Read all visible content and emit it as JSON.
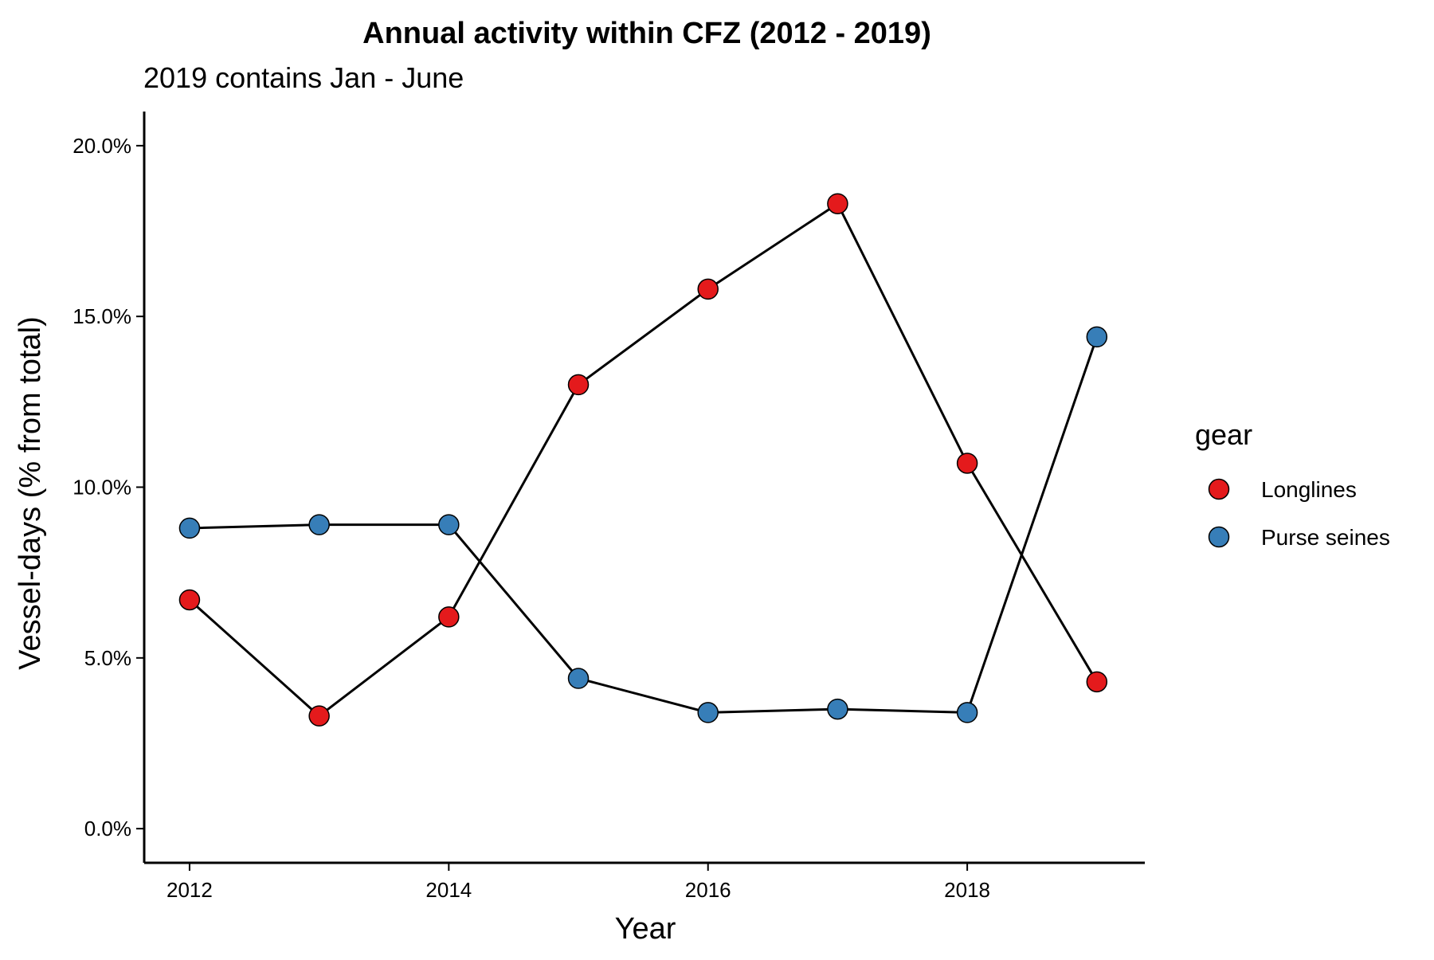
{
  "chart_data": {
    "type": "line",
    "title": "Annual activity within CFZ (2012 - 2019)",
    "subtitle": "2019 contains Jan - June",
    "xlabel": "Year",
    "ylabel": "Vessel-days (% from total)",
    "xlim": [
      2011.65,
      2019.37
    ],
    "ylim": [
      -1.0,
      21.0
    ],
    "x_ticks": [
      2012,
      2014,
      2016,
      2018
    ],
    "y_ticks": [
      0,
      5,
      10,
      15,
      20
    ],
    "y_tick_labels": [
      "0.0%",
      "5.0%",
      "10.0%",
      "15.0%",
      "20.0%"
    ],
    "x_tick_labels": [
      "2012",
      "2014",
      "2016",
      "2018"
    ],
    "grid": false,
    "legend": {
      "title": "gear",
      "position": "right"
    },
    "x": [
      2012,
      2013,
      2014,
      2015,
      2016,
      2017,
      2018,
      2019
    ],
    "series": [
      {
        "name": "Longlines",
        "color": "#e41a1c",
        "values": [
          6.7,
          3.3,
          6.2,
          13.0,
          15.8,
          18.3,
          10.7,
          4.3
        ]
      },
      {
        "name": "Purse seines",
        "color": "#377eb8",
        "values": [
          8.8,
          8.9,
          8.9,
          4.4,
          3.4,
          3.5,
          3.4,
          14.4
        ]
      }
    ]
  }
}
